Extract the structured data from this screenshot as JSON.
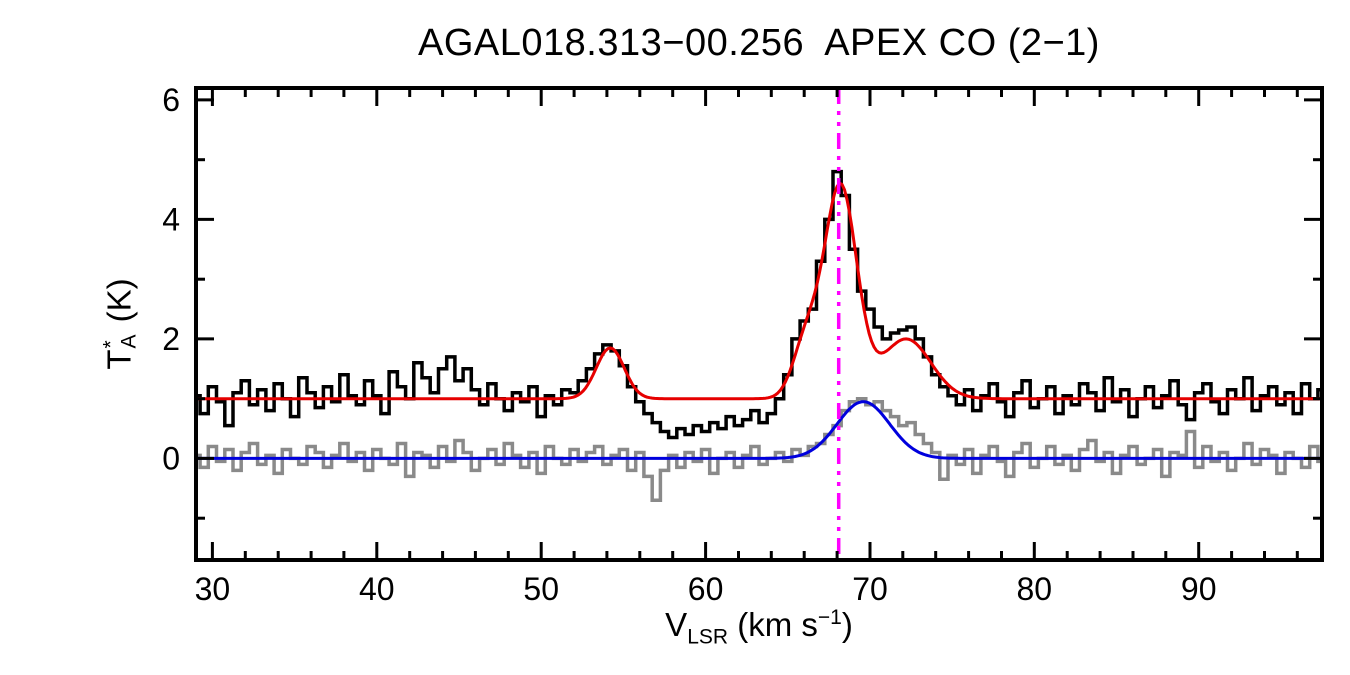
{
  "title": "AGAL018.313−00.256  APEX CO (2−1)",
  "xlabel": {
    "symbol": "V",
    "sub": "LSR",
    "unit_pre": " (km s",
    "sup": "−1",
    "unit_post": ")"
  },
  "ylabel": {
    "symbol": "T",
    "sup": "*",
    "sub": "A",
    "unit": " (K)"
  },
  "chart_data": {
    "type": "line",
    "title": "AGAL018.313−00.256  APEX CO (2−1)",
    "xlabel": "V_LSR (km s^−1)",
    "ylabel": "T_A^* (K)",
    "xlim": [
      29,
      97.5
    ],
    "ylim": [
      -1.7,
      6.2
    ],
    "x_ticks": [
      30,
      40,
      50,
      60,
      70,
      80,
      90
    ],
    "y_ticks": [
      0,
      2,
      4,
      6
    ],
    "x_minor_step": 2,
    "y_minor_ticks": [
      -1,
      1,
      3,
      5
    ],
    "grid": false,
    "legend": "none",
    "x_start": 29.0,
    "x_step": 0.5,
    "series": [
      {
        "name": "observed-spectrum-co21",
        "style": "histogram",
        "color": "#000000",
        "width": 3.5,
        "values": [
          1.05,
          0.75,
          1.2,
          0.95,
          0.55,
          1.1,
          1.3,
          0.9,
          1.15,
          0.8,
          1.25,
          1.0,
          0.7,
          1.35,
          1.1,
          0.85,
          1.2,
          0.95,
          1.4,
          1.05,
          0.9,
          1.3,
          1.05,
          0.75,
          1.45,
          1.2,
          1.0,
          1.6,
          1.35,
          1.1,
          1.5,
          1.7,
          1.3,
          1.5,
          1.15,
          0.9,
          1.25,
          1.0,
          0.8,
          1.1,
          0.95,
          1.2,
          0.7,
          1.05,
          0.9,
          1.15,
          1.1,
          1.3,
          1.5,
          1.75,
          1.9,
          1.8,
          1.55,
          1.2,
          0.95,
          0.75,
          0.6,
          0.45,
          0.35,
          0.5,
          0.4,
          0.55,
          0.45,
          0.6,
          0.5,
          0.7,
          0.55,
          0.65,
          0.8,
          0.6,
          0.75,
          1.0,
          1.4,
          2.0,
          2.3,
          2.5,
          3.3,
          4.0,
          4.8,
          4.4,
          3.5,
          2.8,
          2.5,
          2.2,
          2.0,
          2.1,
          2.15,
          2.2,
          2.0,
          1.7,
          1.4,
          1.2,
          1.05,
          0.9,
          1.15,
          0.8,
          1.05,
          1.25,
          0.95,
          0.7,
          1.1,
          1.3,
          0.85,
          1.0,
          1.2,
          0.75,
          1.05,
          0.9,
          1.25,
          1.1,
          0.8,
          1.35,
          0.95,
          1.15,
          0.7,
          1.0,
          1.2,
          0.85,
          1.05,
          1.3,
          0.9,
          0.65,
          1.1,
          1.25,
          0.95,
          0.75,
          1.15,
          1.0,
          1.35,
          0.8,
          1.05,
          1.2,
          0.9,
          1.1,
          0.75,
          1.25,
          1.0,
          1.15
        ]
      },
      {
        "name": "observed-spectrum-secondary",
        "style": "histogram",
        "color": "#8a8a8a",
        "width": 3.5,
        "values": [
          0.05,
          -0.15,
          0.2,
          -0.05,
          0.15,
          -0.2,
          0.1,
          0.25,
          -0.1,
          0.05,
          -0.25,
          0.15,
          0.0,
          -0.1,
          0.2,
          0.1,
          -0.15,
          0.05,
          0.25,
          -0.05,
          0.1,
          -0.2,
          0.15,
          0.0,
          -0.1,
          0.25,
          -0.3,
          0.1,
          0.05,
          -0.15,
          0.2,
          -0.05,
          0.3,
          0.1,
          -0.2,
          0.0,
          0.15,
          -0.1,
          0.25,
          0.05,
          -0.15,
          0.1,
          -0.25,
          0.2,
          0.0,
          -0.1,
          0.15,
          -0.05,
          0.1,
          0.2,
          -0.1,
          0.05,
          0.15,
          -0.2,
          0.1,
          -0.3,
          -0.7,
          -0.2,
          0.05,
          -0.15,
          0.1,
          -0.05,
          0.15,
          -0.25,
          0.0,
          0.1,
          -0.15,
          0.05,
          0.2,
          -0.1,
          0.0,
          0.1,
          -0.05,
          0.15,
          0.05,
          0.2,
          0.25,
          0.4,
          0.55,
          0.8,
          0.95,
          1.0,
          0.9,
          0.95,
          0.8,
          0.7,
          0.55,
          0.6,
          0.4,
          0.25,
          0.1,
          -0.35,
          0.05,
          -0.1,
          0.15,
          -0.25,
          0.05,
          0.2,
          -0.05,
          -0.3,
          0.1,
          0.25,
          -0.15,
          0.0,
          0.2,
          -0.1,
          0.05,
          -0.2,
          0.15,
          0.3,
          -0.05,
          0.1,
          -0.25,
          0.05,
          0.2,
          -0.1,
          0.0,
          0.15,
          -0.3,
          0.1,
          0.05,
          0.45,
          -0.15,
          0.2,
          -0.05,
          0.1,
          -0.2,
          0.0,
          0.25,
          -0.1,
          0.15,
          0.05,
          -0.25,
          0.1,
          0.0,
          -0.15,
          0.2,
          -0.05
        ]
      },
      {
        "name": "gaussian-fit-co21",
        "style": "gaussian-sum",
        "color": "#e60000",
        "width": 3,
        "baseline": 1.0,
        "components": [
          {
            "center": 54.2,
            "amp": 0.85,
            "sigma": 0.85
          },
          {
            "center": 66.1,
            "amp": 0.9,
            "sigma": 0.8
          },
          {
            "center": 68.2,
            "amp": 3.55,
            "sigma": 1.0
          },
          {
            "center": 72.2,
            "amp": 1.0,
            "sigma": 1.5
          }
        ]
      },
      {
        "name": "gaussian-fit-secondary",
        "style": "gaussian-sum",
        "color": "#0000dd",
        "width": 3,
        "baseline": 0.0,
        "components": [
          {
            "center": 69.6,
            "amp": 0.95,
            "sigma": 1.6
          }
        ]
      }
    ],
    "vline": {
      "x": 68.1,
      "color": "#ff00ff",
      "style": "dash-dot",
      "width": 3.5
    }
  }
}
